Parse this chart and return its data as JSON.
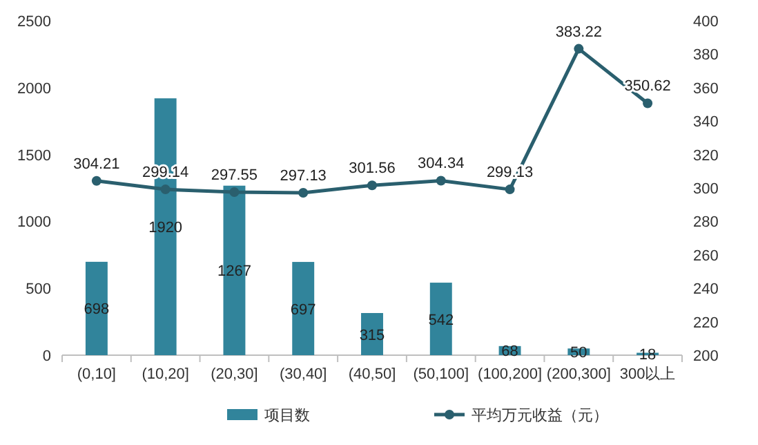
{
  "chart_data": {
    "type": "bar",
    "categories": [
      "(0,10]",
      "(10,20]",
      "(20,30]",
      "(30,40]",
      "(40,50]",
      "(50,100]",
      "(100,200]",
      "(200,300]",
      "300以上"
    ],
    "series": [
      {
        "name": "项目数",
        "color": "#31849b",
        "values": [
          698,
          1920,
          1267,
          697,
          315,
          542,
          68,
          50,
          18
        ]
      },
      {
        "name": "平均万元收益（元）",
        "type": "line",
        "axis": "y2",
        "color": "#2a5f6e",
        "marker": "circle",
        "values": [
          304.21,
          299.14,
          297.55,
          297.13,
          301.56,
          304.34,
          299.13,
          383.22,
          350.62
        ]
      }
    ],
    "ylim": [
      0,
      2500
    ],
    "yticks": [
      0,
      500,
      1000,
      1500,
      2000,
      2500
    ],
    "y2lim": [
      200,
      400
    ],
    "y2ticks": [
      200,
      220,
      240,
      260,
      280,
      300,
      320,
      340,
      360,
      380,
      400
    ],
    "data_labels": true,
    "legend": "bottom",
    "grid": false
  }
}
